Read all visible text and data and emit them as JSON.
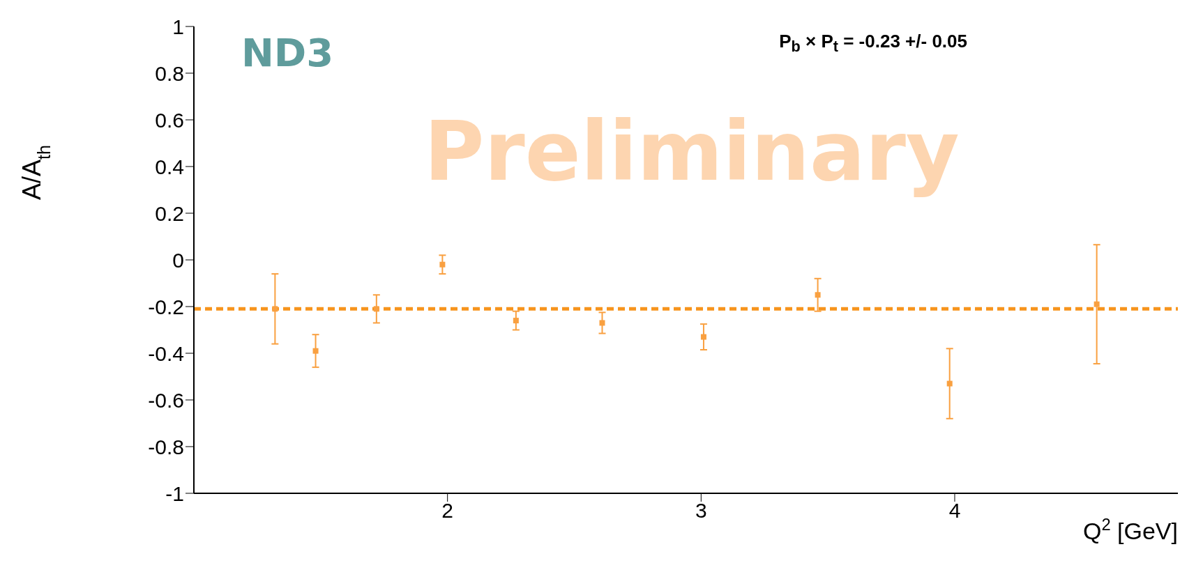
{
  "chart_data": {
    "type": "scatter",
    "xlabel": "Q$^{2}$ [GeV]",
    "ylabel": "A/A$_{th}$",
    "x": [
      1.32,
      1.48,
      1.72,
      1.98,
      2.27,
      2.61,
      3.01,
      3.46,
      3.98,
      4.56
    ],
    "series": [
      {
        "color": "#f9a040",
        "values": [
          -0.21,
          -0.39,
          -0.21,
          -0.02,
          -0.26,
          -0.27,
          -0.33,
          -0.15,
          -0.53,
          -0.19
        ],
        "errors": [
          0.15,
          0.07,
          0.06,
          0.04,
          0.04,
          0.045,
          0.055,
          0.07,
          0.15,
          0.255
        ]
      }
    ],
    "marker": "square",
    "xlim": [
      1,
      4.88
    ],
    "xticks": [
      2,
      3,
      4
    ],
    "ylim": [
      -1,
      1
    ],
    "yticks": [
      -1,
      -0.8,
      -0.6,
      -0.4,
      -0.2,
      0,
      0.2,
      0.4,
      0.6,
      0.8,
      1
    ],
    "ref_lines": [
      {
        "axis": "y",
        "value": -0.21,
        "color": "#f7941d",
        "line_style": "dashed"
      }
    ],
    "annotations": [
      "P$_{b}$ × P$_{t}$ = -0.23 +/- 0.05",
      "ND3",
      "Preliminary"
    ],
    "grid": false,
    "legend": false
  }
}
